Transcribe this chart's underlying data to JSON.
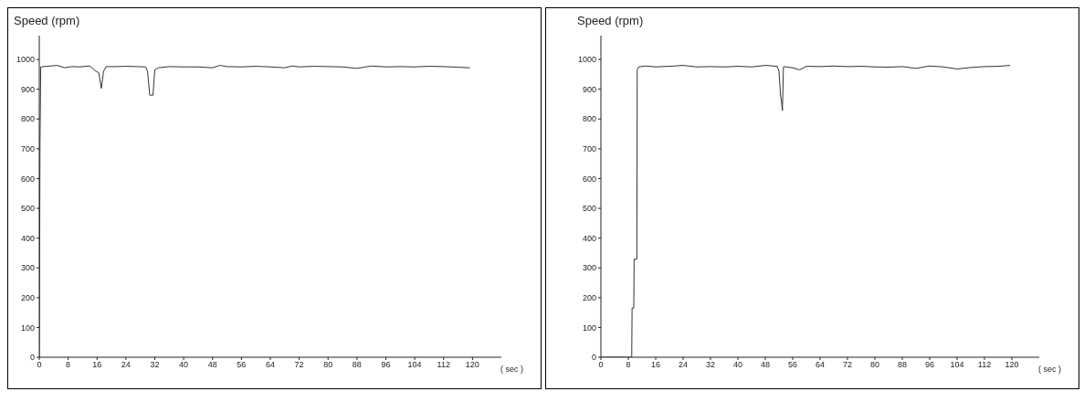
{
  "chart_data": [
    {
      "type": "line",
      "ylabel": "Speed (rpm)",
      "xlabel": "( sec )",
      "xlim": [
        0,
        128
      ],
      "xticks": [
        0,
        8,
        16,
        24,
        32,
        40,
        48,
        56,
        64,
        72,
        80,
        88,
        96,
        104,
        112,
        120
      ],
      "ylim": [
        0,
        1080
      ],
      "yticks": [
        0,
        100,
        200,
        300,
        400,
        500,
        600,
        700,
        800,
        900,
        1000
      ],
      "marker": "none",
      "line_style": "solid",
      "series": [
        {
          "color": "#333333",
          "x": [
            0,
            0.2,
            0.4,
            3,
            5,
            7,
            9,
            11,
            14,
            15.5,
            16.5,
            17.2,
            17.8,
            18.5,
            21,
            24,
            27,
            29.5,
            30,
            30.6,
            31.5,
            32,
            33,
            36,
            40,
            44,
            48,
            50,
            52,
            56,
            60,
            64,
            68,
            70,
            72,
            76,
            80,
            84,
            88,
            90,
            92,
            96,
            100,
            104,
            108,
            112,
            116,
            119.3
          ],
          "values": [
            0,
            720,
            975,
            978,
            980,
            972,
            976,
            975,
            978,
            962,
            955,
            903,
            960,
            976,
            976,
            977,
            976,
            975,
            960,
            880,
            880,
            965,
            972,
            976,
            975,
            975,
            972,
            980,
            976,
            975,
            977,
            975,
            972,
            978,
            975,
            977,
            976,
            975,
            970,
            974,
            978,
            975,
            976,
            975,
            977,
            976,
            974,
            972
          ]
        }
      ]
    },
    {
      "type": "line",
      "ylabel": "Speed (rpm)",
      "xlabel": "( sec )",
      "xlim": [
        0,
        128
      ],
      "xticks": [
        0,
        8,
        16,
        24,
        32,
        40,
        48,
        56,
        64,
        72,
        80,
        88,
        96,
        104,
        112,
        120
      ],
      "ylim": [
        0,
        1080
      ],
      "yticks": [
        0,
        100,
        200,
        300,
        400,
        500,
        600,
        700,
        800,
        900,
        1000
      ],
      "marker": "none",
      "line_style": "solid",
      "series": [
        {
          "color": "#333333",
          "x": [
            0,
            9,
            9.1,
            9.6,
            9.7,
            10.5,
            10.6,
            11,
            13,
            16,
            20,
            24,
            28,
            32,
            36,
            40,
            44,
            48,
            51.5,
            52,
            52.5,
            52.6,
            53,
            53.3,
            53.5,
            56,
            58,
            60,
            64,
            68,
            72,
            76,
            80,
            84,
            88,
            92,
            96,
            100,
            104,
            108,
            112,
            116,
            119.5
          ],
          "values": [
            0,
            0,
            165,
            165,
            330,
            330,
            965,
            975,
            978,
            975,
            977,
            980,
            975,
            976,
            975,
            977,
            975,
            980,
            977,
            960,
            872,
            872,
            828,
            975,
            976,
            972,
            965,
            977,
            976,
            978,
            976,
            977,
            975,
            974,
            976,
            970,
            978,
            975,
            968,
            973,
            976,
            977,
            980
          ]
        }
      ]
    }
  ]
}
